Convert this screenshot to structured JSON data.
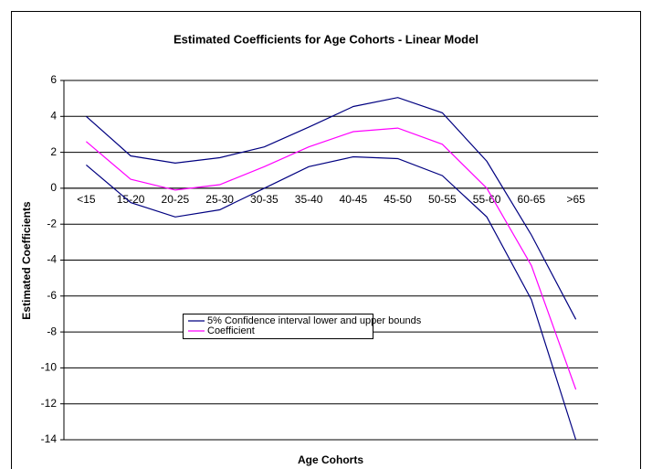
{
  "chart_data": {
    "type": "line",
    "title": "Estimated Coefficients for Age Cohorts - Linear Model",
    "x_label": "Age Cohorts",
    "y_label": "Estimated Coefficients",
    "categories": [
      "<15",
      "15-20",
      "20-25",
      "25-30",
      "30-35",
      "35-40",
      "40-45",
      "45-50",
      "50-55",
      "55-60",
      "60-65",
      ">65"
    ],
    "series": [
      {
        "name": "5% Confidence interval lower and upper bounds",
        "color": "#000080",
        "values": [
          4.0,
          1.8,
          1.4,
          1.7,
          2.3,
          3.4,
          4.55,
          5.05,
          4.2,
          1.5,
          -2.6,
          -7.3
        ]
      },
      {
        "name": "Coefficient",
        "color": "#ff00ff",
        "values": [
          2.6,
          0.5,
          -0.1,
          0.2,
          1.2,
          2.3,
          3.15,
          3.35,
          2.45,
          0.0,
          -4.3,
          -11.2
        ]
      },
      {
        "color": "#000080",
        "values": [
          1.3,
          -0.8,
          -1.6,
          -1.2,
          0.0,
          1.2,
          1.75,
          1.65,
          0.7,
          -1.6,
          -6.2,
          -14.0
        ]
      }
    ],
    "ylim": [
      -14,
      6
    ],
    "yticks": [
      -14,
      -12,
      -10,
      -8,
      -6,
      -4,
      -2,
      0,
      2,
      4,
      6
    ],
    "grid": true
  }
}
